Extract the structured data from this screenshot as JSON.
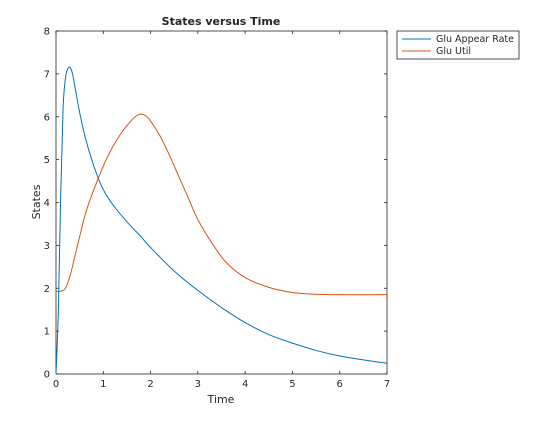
{
  "chart_data": {
    "type": "line",
    "title": "States versus Time",
    "xlabel": "Time",
    "ylabel": "States",
    "xlim": [
      0,
      7
    ],
    "ylim": [
      0,
      8
    ],
    "xticks": [
      "0",
      "1",
      "2",
      "3",
      "4",
      "5",
      "6",
      "7"
    ],
    "yticks": [
      "0",
      "1",
      "2",
      "3",
      "4",
      "5",
      "6",
      "7",
      "8"
    ],
    "grid": false,
    "legend_position": "outside-top-right",
    "series": [
      {
        "name": "Glu Appear Rate",
        "color": "#0072BD",
        "x": [
          0,
          0.05,
          0.1,
          0.15,
          0.2,
          0.25,
          0.3,
          0.35,
          0.4,
          0.5,
          0.6,
          0.7,
          0.8,
          0.9,
          1.0,
          1.2,
          1.5,
          1.8,
          2.0,
          2.5,
          3.0,
          3.5,
          4.0,
          4.5,
          5.0,
          5.5,
          6.0,
          6.5,
          7.0
        ],
        "y": [
          0,
          1.5,
          4.2,
          6.2,
          6.9,
          7.12,
          7.15,
          7.0,
          6.7,
          6.1,
          5.6,
          5.2,
          4.85,
          4.55,
          4.3,
          3.95,
          3.55,
          3.2,
          2.95,
          2.4,
          1.95,
          1.55,
          1.2,
          0.92,
          0.72,
          0.55,
          0.42,
          0.33,
          0.25
        ]
      },
      {
        "name": "Glu Util",
        "color": "#D95319",
        "x": [
          0,
          0.1,
          0.2,
          0.3,
          0.4,
          0.5,
          0.6,
          0.7,
          0.8,
          1.0,
          1.2,
          1.4,
          1.6,
          1.7,
          1.8,
          1.9,
          2.0,
          2.2,
          2.4,
          2.6,
          2.8,
          3.0,
          3.3,
          3.6,
          4.0,
          4.5,
          5.0,
          5.5,
          6.0,
          7.0
        ],
        "y": [
          1.93,
          1.93,
          2.0,
          2.3,
          2.75,
          3.2,
          3.65,
          4.0,
          4.3,
          4.85,
          5.3,
          5.65,
          5.92,
          6.02,
          6.06,
          6.02,
          5.9,
          5.55,
          5.1,
          4.6,
          4.1,
          3.6,
          3.05,
          2.6,
          2.25,
          2.02,
          1.9,
          1.86,
          1.85,
          1.85
        ]
      }
    ]
  }
}
